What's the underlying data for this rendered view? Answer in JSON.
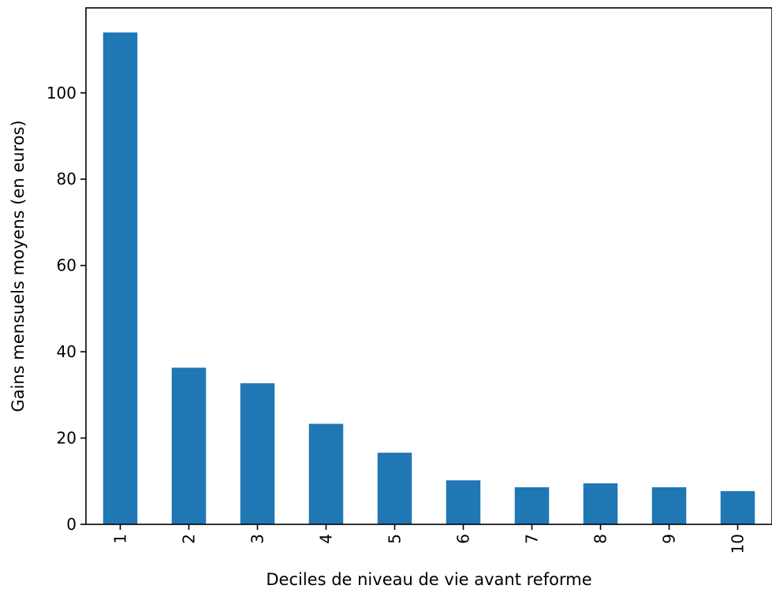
{
  "chart_data": {
    "type": "bar",
    "categories": [
      "1",
      "2",
      "3",
      "4",
      "5",
      "6",
      "7",
      "8",
      "9",
      "10"
    ],
    "values": [
      114.0,
      36.3,
      32.7,
      23.3,
      16.6,
      10.2,
      8.6,
      9.5,
      8.6,
      7.7
    ],
    "xlabel": "Deciles de niveau de vie avant reforme",
    "ylabel": "Gains mensuels moyens (en euros)",
    "ylim": [
      0,
      119.7
    ],
    "yticks": [
      0,
      20,
      40,
      60,
      80,
      100
    ],
    "ytick_labels": [
      "0",
      "20",
      "40",
      "60",
      "80",
      "100"
    ],
    "xtick_rotation": "vertical",
    "grid": false,
    "legend": "none",
    "bar_color": "#1f77b4"
  }
}
